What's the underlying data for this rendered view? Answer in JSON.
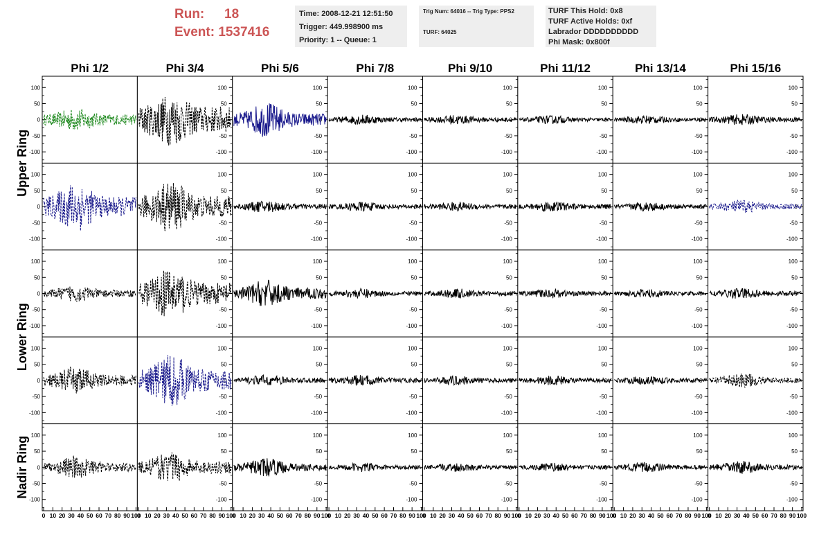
{
  "header": {
    "run_label": "Run:",
    "run_value": "18",
    "event_label": "Event:",
    "event_value": "1537416",
    "time_line": "Time: 2008-12-21 12:51:50",
    "trigger_line": "Trigger: 449.998900 ms",
    "priority_line": "Priority: 1 -- Queue: 1",
    "trig_num_line": "Trig Num: 64016 -- Trig Type: PPS2",
    "turf_line": "TURF: 64025",
    "turf_hold_line": "TURF This Hold: 0x8",
    "turf_active_line": "TURF Active Holds: 0xf",
    "labrador_line": "Labrador DDDDDDDDDD",
    "phi_mask_line": "Phi Mask: 0x800f"
  },
  "chart_data": {
    "type": "line",
    "columns": [
      "Phi 1/2",
      "Phi 3/4",
      "Phi 5/6",
      "Phi 7/8",
      "Phi 9/10",
      "Phi 11/12",
      "Phi 13/14",
      "Phi 15/16"
    ],
    "rows": [
      "Upper Ring",
      "Upper Ring",
      "Lower Ring",
      "Lower Ring",
      "Nadir Ring"
    ],
    "row_labels": [
      {
        "label": "Upper Ring",
        "rows": [
          0,
          1
        ]
      },
      {
        "label": "Lower Ring",
        "rows": [
          2,
          3
        ]
      },
      {
        "label": "Nadir Ring",
        "rows": [
          4
        ]
      }
    ],
    "ylim": [
      -135,
      135
    ],
    "yticks": [
      -100,
      -50,
      0,
      50,
      100
    ],
    "xlim": [
      0,
      100
    ],
    "xtick_labels": [
      "0",
      "10",
      "20",
      "30",
      "40",
      "50",
      "60",
      "70",
      "80",
      "90",
      "100"
    ],
    "grid": false,
    "colors": {
      "black": "#000000",
      "green": "#228b22",
      "blue": "#1a1a8c"
    },
    "panels": [
      [
        {
          "style": "dashed",
          "color": "green",
          "amp": 30,
          "peak": 45
        },
        {
          "style": "dashed",
          "color": "black",
          "amp": 75,
          "peak": 90
        },
        {
          "style": "solid",
          "color": "blue",
          "amp": 35,
          "peak": 80
        },
        {
          "style": "solid",
          "color": "black",
          "amp": 12,
          "peak": 22
        },
        {
          "style": "solid",
          "color": "black",
          "amp": 12,
          "peak": 20
        },
        {
          "style": "solid",
          "color": "black",
          "amp": 10,
          "peak": 18
        },
        {
          "style": "solid",
          "color": "black",
          "amp": 11,
          "peak": 18
        },
        {
          "style": "solid",
          "color": "black",
          "amp": 14,
          "peak": 22
        }
      ],
      [
        {
          "style": "dashed",
          "color": "blue",
          "amp": 55,
          "peak": 110
        },
        {
          "style": "dashed",
          "color": "black",
          "amp": 60,
          "peak": 110
        },
        {
          "style": "solid",
          "color": "black",
          "amp": 15,
          "peak": 25
        },
        {
          "style": "solid",
          "color": "black",
          "amp": 12,
          "peak": 20
        },
        {
          "style": "solid",
          "color": "black",
          "amp": 12,
          "peak": 18
        },
        {
          "style": "solid",
          "color": "black",
          "amp": 13,
          "peak": 22
        },
        {
          "style": "solid",
          "color": "black",
          "amp": 12,
          "peak": 18
        },
        {
          "style": "dashed",
          "color": "blue",
          "amp": 15,
          "peak": 28
        }
      ],
      [
        {
          "style": "dashed",
          "color": "black",
          "amp": 20,
          "peak": 35
        },
        {
          "style": "dashed",
          "color": "black",
          "amp": 60,
          "peak": 110
        },
        {
          "style": "solid",
          "color": "black",
          "amp": 30,
          "peak": 60
        },
        {
          "style": "solid",
          "color": "black",
          "amp": 12,
          "peak": 20
        },
        {
          "style": "solid",
          "color": "black",
          "amp": 12,
          "peak": 20
        },
        {
          "style": "solid",
          "color": "black",
          "amp": 12,
          "peak": 18
        },
        {
          "style": "solid",
          "color": "black",
          "amp": 11,
          "peak": 18
        },
        {
          "style": "solid",
          "color": "black",
          "amp": 14,
          "peak": 22
        }
      ],
      [
        {
          "style": "dashed",
          "color": "black",
          "amp": 30,
          "peak": 60
        },
        {
          "style": "dashed",
          "color": "blue",
          "amp": 60,
          "peak": 120
        },
        {
          "style": "solid",
          "color": "black",
          "amp": 14,
          "peak": 22
        },
        {
          "style": "solid",
          "color": "black",
          "amp": 13,
          "peak": 22
        },
        {
          "style": "solid",
          "color": "black",
          "amp": 12,
          "peak": 18
        },
        {
          "style": "solid",
          "color": "black",
          "amp": 12,
          "peak": 20
        },
        {
          "style": "solid",
          "color": "black",
          "amp": 12,
          "peak": 18
        },
        {
          "style": "dashed",
          "color": "black",
          "amp": 15,
          "peak": 35
        }
      ],
      [
        {
          "style": "dashed",
          "color": "black",
          "amp": 25,
          "peak": 50
        },
        {
          "style": "dashed",
          "color": "black",
          "amp": 35,
          "peak": 65
        },
        {
          "style": "solid",
          "color": "black",
          "amp": 20,
          "peak": 40
        },
        {
          "style": "solid",
          "color": "black",
          "amp": 11,
          "peak": 18
        },
        {
          "style": "solid",
          "color": "black",
          "amp": 11,
          "peak": 18
        },
        {
          "style": "solid",
          "color": "black",
          "amp": 11,
          "peak": 18
        },
        {
          "style": "solid",
          "color": "black",
          "amp": 12,
          "peak": 22
        },
        {
          "style": "solid",
          "color": "black",
          "amp": 14,
          "peak": 28
        }
      ]
    ]
  }
}
